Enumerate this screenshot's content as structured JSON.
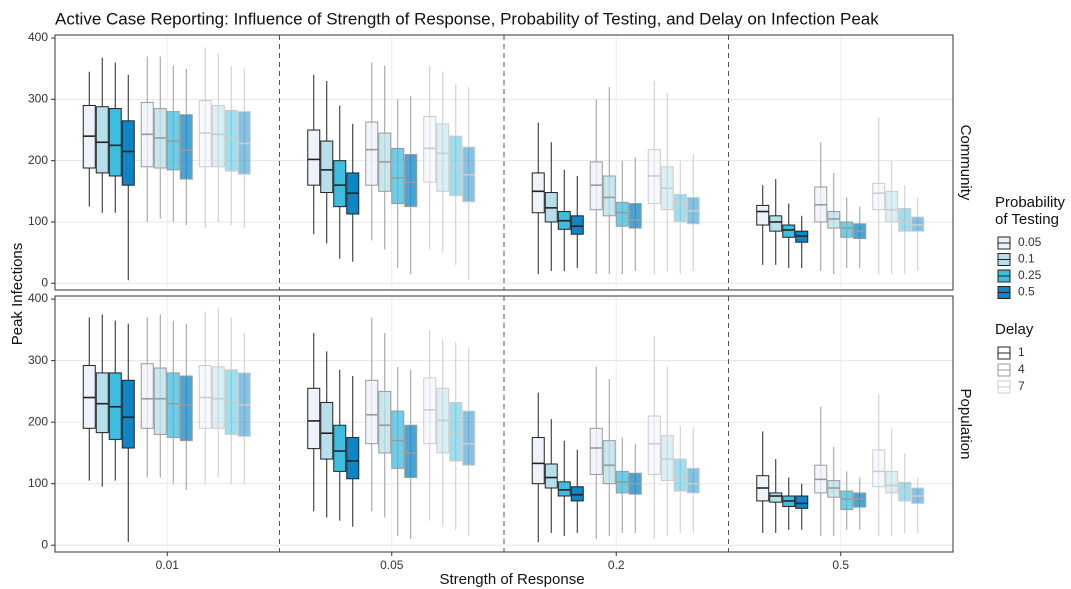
{
  "chart_data": {
    "type": "boxplot",
    "title": "Active Case Reporting: Influence of Strength of Response, Probability of Testing, and Delay on Infection Peak",
    "xlabel": "Strength of Response",
    "ylabel": "Peak Infections",
    "categories": [
      "0.01",
      "0.05",
      "0.2",
      "0.5"
    ],
    "ylim": [
      -11,
      405
    ],
    "yticks": [
      0,
      100,
      200,
      300,
      400
    ],
    "grid": true,
    "probability_legend": {
      "title": [
        "Probability",
        "of Testing"
      ],
      "names": [
        "0.05",
        "0.1",
        "0.25",
        "0.5"
      ],
      "colors": [
        "#eef3fb",
        "#b7dfea",
        "#3dbde0",
        "#0d86c8"
      ]
    },
    "delay_legend": {
      "title": "Delay",
      "names": [
        "1",
        "4",
        "7"
      ],
      "stroke": [
        "#222222",
        "#9a9a9a",
        "#cccccc"
      ],
      "alpha": [
        1,
        0.75,
        0.5
      ]
    },
    "facets": [
      {
        "name": "Community",
        "stats": [
          [
            [
              [
                125,
                188,
                240,
                290,
                345
              ],
              [
                115,
                180,
                230,
                288,
                368
              ],
              [
                115,
                175,
                225,
                285,
                360
              ],
              [
                5,
                160,
                215,
                265,
                340
              ]
            ],
            [
              [
                100,
                190,
                243,
                295,
                370
              ],
              [
                105,
                188,
                237,
                285,
                370
              ],
              [
                100,
                185,
                232,
                280,
                355
              ],
              [
                95,
                170,
                217,
                275,
                350
              ]
            ],
            [
              [
                90,
                190,
                245,
                298,
                385
              ],
              [
                100,
                190,
                243,
                290,
                375
              ],
              [
                95,
                183,
                237,
                282,
                355
              ],
              [
                90,
                178,
                228,
                280,
                350
              ]
            ]
          ],
          [
            [
              [
                80,
                160,
                202,
                250,
                340
              ],
              [
                65,
                148,
                185,
                232,
                330
              ],
              [
                40,
                125,
                160,
                200,
                290
              ],
              [
                35,
                113,
                147,
                180,
                260
              ]
            ],
            [
              [
                70,
                160,
                218,
                263,
                360
              ],
              [
                55,
                150,
                198,
                245,
                355
              ],
              [
                25,
                130,
                172,
                220,
                300
              ],
              [
                15,
                125,
                165,
                210,
                305
              ]
            ],
            [
              [
                55,
                165,
                220,
                272,
                355
              ],
              [
                50,
                150,
                212,
                260,
                345
              ],
              [
                30,
                143,
                192,
                240,
                325
              ],
              [
                5,
                133,
                177,
                222,
                320
              ]
            ]
          ],
          [
            [
              [
                15,
                115,
                150,
                180,
                262
              ],
              [
                20,
                100,
                123,
                148,
                230
              ],
              [
                20,
                88,
                102,
                117,
                185
              ],
              [
                25,
                80,
                93,
                110,
                175
              ]
            ],
            [
              [
                15,
                120,
                160,
                198,
                300
              ],
              [
                15,
                110,
                140,
                175,
                320
              ],
              [
                15,
                93,
                115,
                132,
                200
              ],
              [
                20,
                90,
                103,
                130,
                205
              ]
            ],
            [
              [
                15,
                130,
                175,
                218,
                330
              ],
              [
                20,
                120,
                155,
                190,
                310
              ],
              [
                15,
                100,
                130,
                145,
                200
              ],
              [
                20,
                97,
                118,
                140,
                210
              ]
            ]
          ],
          [
            [
              [
                30,
                95,
                117,
                127,
                160
              ],
              [
                30,
                85,
                100,
                110,
                170
              ],
              [
                25,
                75,
                87,
                95,
                130
              ],
              [
                25,
                67,
                77,
                85,
                110
              ]
            ],
            [
              [
                20,
                100,
                128,
                157,
                230
              ],
              [
                15,
                90,
                105,
                117,
                180
              ],
              [
                25,
                75,
                90,
                100,
                140
              ],
              [
                25,
                73,
                85,
                97,
                125
              ]
            ],
            [
              [
                15,
                120,
                147,
                163,
                270
              ],
              [
                15,
                100,
                120,
                150,
                200
              ],
              [
                15,
                85,
                100,
                122,
                160
              ],
              [
                20,
                85,
                95,
                108,
                140
              ]
            ]
          ]
        ]
      },
      {
        "name": "Population",
        "stats": [
          [
            [
              [
                105,
                190,
                240,
                292,
                370
              ],
              [
                95,
                183,
                230,
                280,
                375
              ],
              [
                105,
                172,
                225,
                280,
                365
              ],
              [
                5,
                158,
                208,
                268,
                360
              ]
            ],
            [
              [
                110,
                190,
                238,
                295,
                370
              ],
              [
                110,
                180,
                238,
                288,
                375
              ],
              [
                100,
                175,
                230,
                280,
                365
              ],
              [
                90,
                170,
                228,
                275,
                360
              ]
            ],
            [
              [
                100,
                190,
                240,
                292,
                380
              ],
              [
                110,
                190,
                238,
                290,
                385
              ],
              [
                100,
                180,
                232,
                285,
                370
              ],
              [
                100,
                177,
                228,
                280,
                345
              ]
            ]
          ],
          [
            [
              [
                55,
                157,
                202,
                255,
                345
              ],
              [
                45,
                140,
                182,
                232,
                315
              ],
              [
                40,
                120,
                153,
                195,
                285
              ],
              [
                30,
                108,
                137,
                175,
                275
              ]
            ],
            [
              [
                55,
                165,
                212,
                268,
                370
              ],
              [
                45,
                150,
                195,
                250,
                345
              ],
              [
                15,
                125,
                170,
                218,
                290
              ],
              [
                10,
                110,
                150,
                195,
                285
              ]
            ],
            [
              [
                40,
                165,
                220,
                272,
                350
              ],
              [
                30,
                150,
                203,
                255,
                335
              ],
              [
                25,
                137,
                182,
                232,
                330
              ],
              [
                15,
                130,
                165,
                218,
                320
              ]
            ]
          ],
          [
            [
              [
                5,
                100,
                133,
                175,
                248
              ],
              [
                20,
                93,
                110,
                132,
                205
              ],
              [
                15,
                80,
                90,
                103,
                170
              ],
              [
                20,
                72,
                82,
                95,
                155
              ]
            ],
            [
              [
                10,
                115,
                158,
                190,
                290
              ],
              [
                15,
                100,
                130,
                170,
                270
              ],
              [
                20,
                85,
                103,
                120,
                175
              ],
              [
                20,
                83,
                100,
                117,
                165
              ]
            ],
            [
              [
                10,
                115,
                165,
                210,
                340
              ],
              [
                15,
                105,
                140,
                178,
                290
              ],
              [
                20,
                88,
                110,
                140,
                195
              ],
              [
                20,
                85,
                100,
                125,
                190
              ]
            ]
          ],
          [
            [
              [
                20,
                72,
                93,
                113,
                185
              ],
              [
                20,
                70,
                80,
                85,
                140
              ],
              [
                25,
                63,
                72,
                80,
                110
              ],
              [
                25,
                60,
                68,
                80,
                100
              ]
            ],
            [
              [
                15,
                85,
                107,
                130,
                225
              ],
              [
                15,
                78,
                93,
                105,
                160
              ],
              [
                25,
                58,
                75,
                88,
                120
              ],
              [
                25,
                62,
                75,
                85,
                110
              ]
            ],
            [
              [
                15,
                95,
                120,
                155,
                245
              ],
              [
                15,
                85,
                97,
                120,
                190
              ],
              [
                20,
                72,
                88,
                102,
                150
              ],
              [
                20,
                68,
                80,
                93,
                110
              ]
            ]
          ]
        ]
      }
    ]
  }
}
